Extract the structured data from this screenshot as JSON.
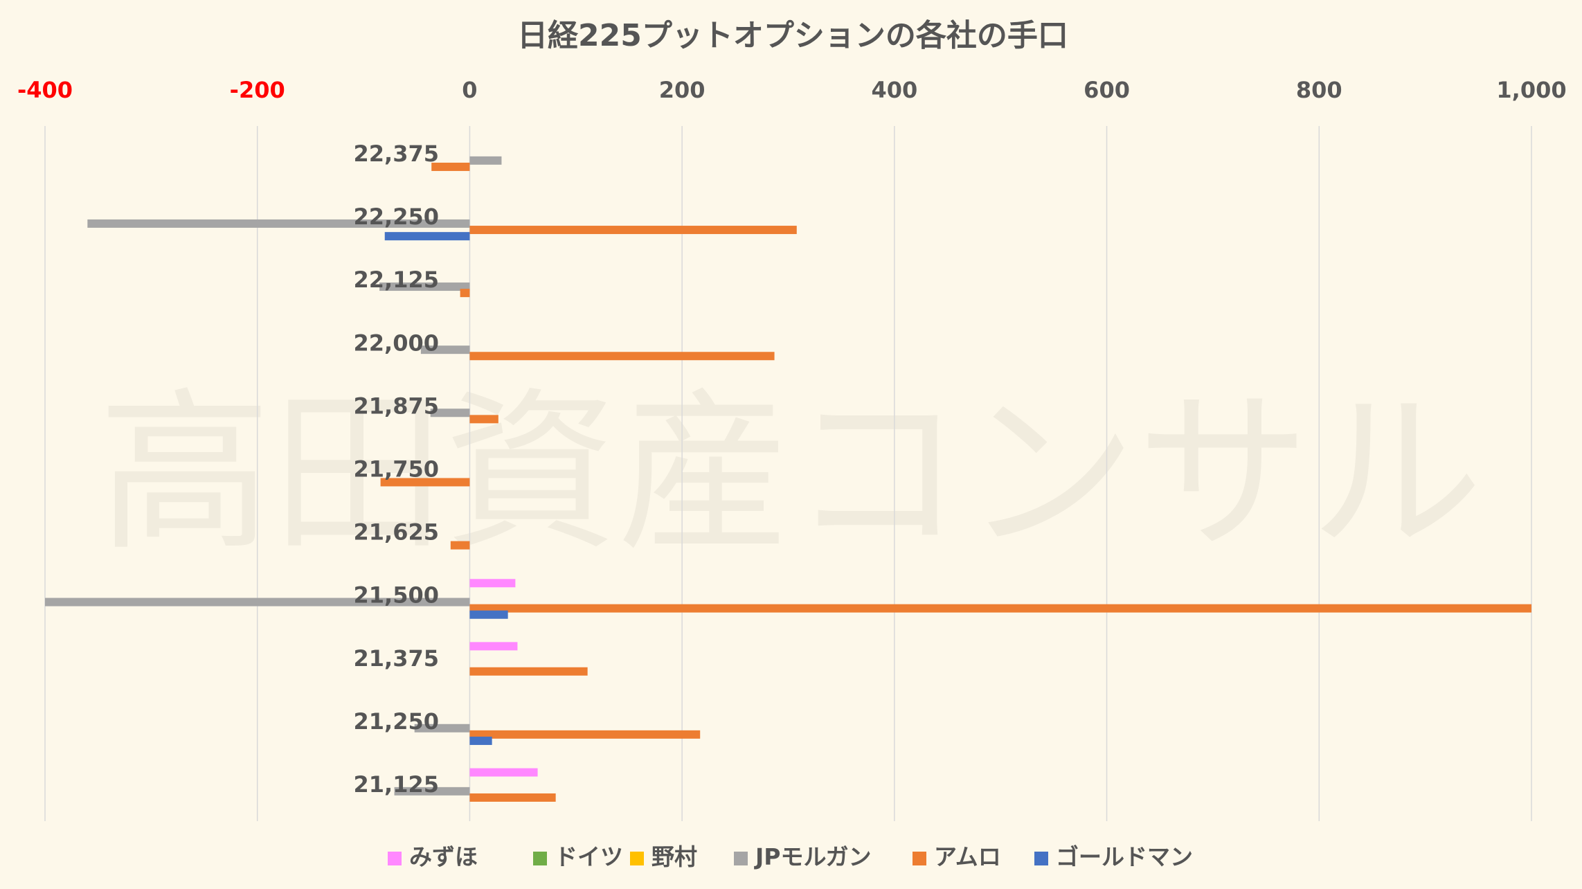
{
  "chart_data": {
    "type": "bar",
    "orientation": "horizontal",
    "title": "日経225プットオプションの各社の手口",
    "watermark": "高田資産コンサル",
    "categories": [
      "22,375",
      "22,250",
      "22,125",
      "22,000",
      "21,875",
      "21,750",
      "21,625",
      "21,500",
      "21,375",
      "21,250",
      "21,125"
    ],
    "xlim": [
      -400,
      1000
    ],
    "xticks": [
      -400,
      -200,
      0,
      200,
      400,
      600,
      800,
      1000
    ],
    "xtick_labels": [
      "-400",
      "-200",
      "0",
      "200",
      "400",
      "600",
      "800",
      "1,000"
    ],
    "negative_tick_color": "#ff0000",
    "axis_text_color": "#595959",
    "xaxis_position": "top",
    "grid": true,
    "legend_position": "bottom",
    "series": [
      {
        "name": "みずほ",
        "color": "#ff88ff",
        "values": [
          0,
          0,
          0,
          0,
          0,
          0,
          0,
          43,
          45,
          0,
          64
        ]
      },
      {
        "name": "ドイツ",
        "color": "#70ad47",
        "values": [
          0,
          0,
          0,
          0,
          0,
          0,
          0,
          0,
          0,
          0,
          0
        ]
      },
      {
        "name": "野村",
        "color": "#ffc000",
        "values": [
          0,
          0,
          0,
          0,
          0,
          0,
          0,
          0,
          0,
          0,
          0
        ]
      },
      {
        "name": "JPモルガン",
        "color": "#a5a5a5",
        "values": [
          30,
          -360,
          -85,
          -46,
          -37,
          0,
          0,
          -400,
          0,
          -52,
          -71
        ]
      },
      {
        "name": "アムロ",
        "color": "#ed7d31",
        "values": [
          -36,
          308,
          -9,
          287,
          27,
          -84,
          -18,
          1000,
          111,
          217,
          81
        ]
      },
      {
        "name": "ゴールドマン",
        "color": "#4472c4",
        "values": [
          0,
          -80,
          0,
          0,
          0,
          0,
          0,
          36,
          0,
          21,
          0
        ]
      }
    ]
  }
}
